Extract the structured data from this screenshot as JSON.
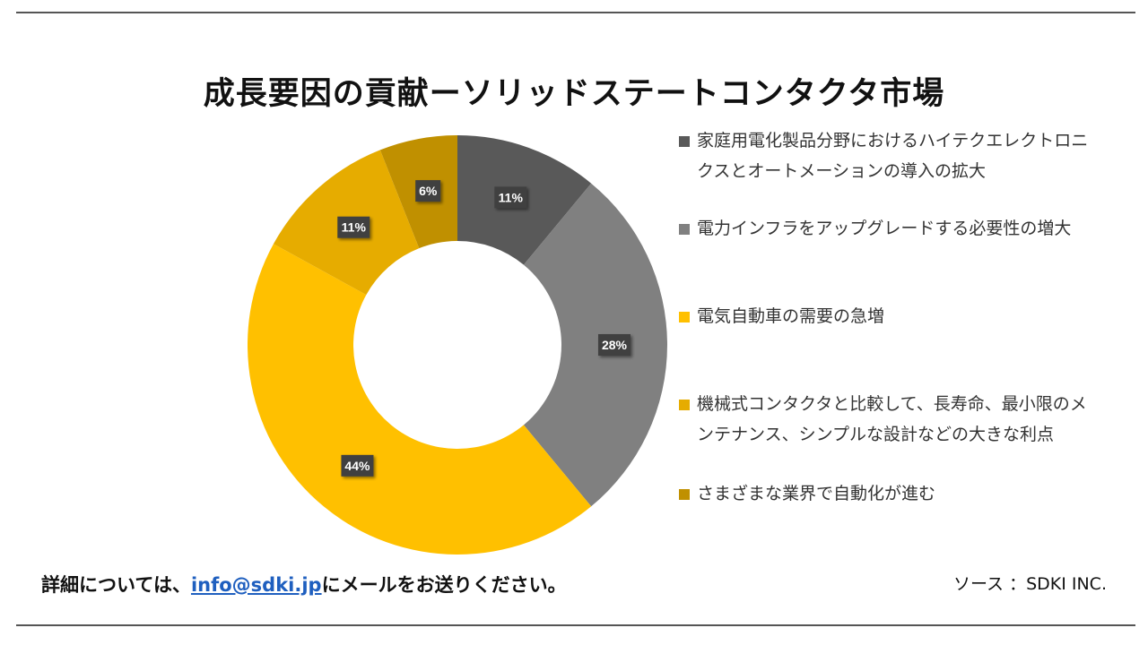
{
  "title": "成長要因の貢献ーソリッドステートコンタクタ市場",
  "footer": {
    "prefix": "詳細については、",
    "email": "info@sdki.jp",
    "suffix": "にメールをお送りください。",
    "source": "ソース ：SDKI INC."
  },
  "chart_data": {
    "type": "pie",
    "donut": true,
    "title": "成長要因の貢献ーソリッドステートコンタクタ市場",
    "legend_position": "right",
    "series": [
      {
        "name": "家庭用電化製品分野におけるハイテクエレクトロニクスとオートメーションの導入の拡大",
        "value": 11,
        "label": "11%",
        "color": "#595959"
      },
      {
        "name": "電力インフラをアップグレードする必要性の増大",
        "value": 28,
        "label": "28%",
        "color": "#808080"
      },
      {
        "name": "電気自動車の需要の急増",
        "value": 44,
        "label": "44%",
        "color": "#FFC000"
      },
      {
        "name": "機械式コンタクタと比較して、長寿命、最小限のメンテナンス、シンプルな設計などの大きな利点",
        "value": 11,
        "label": "11%",
        "color": "#E6AC00"
      },
      {
        "name": "さまざまな業界で自動化が進む",
        "value": 6,
        "label": "6%",
        "color": "#C09000"
      }
    ]
  }
}
